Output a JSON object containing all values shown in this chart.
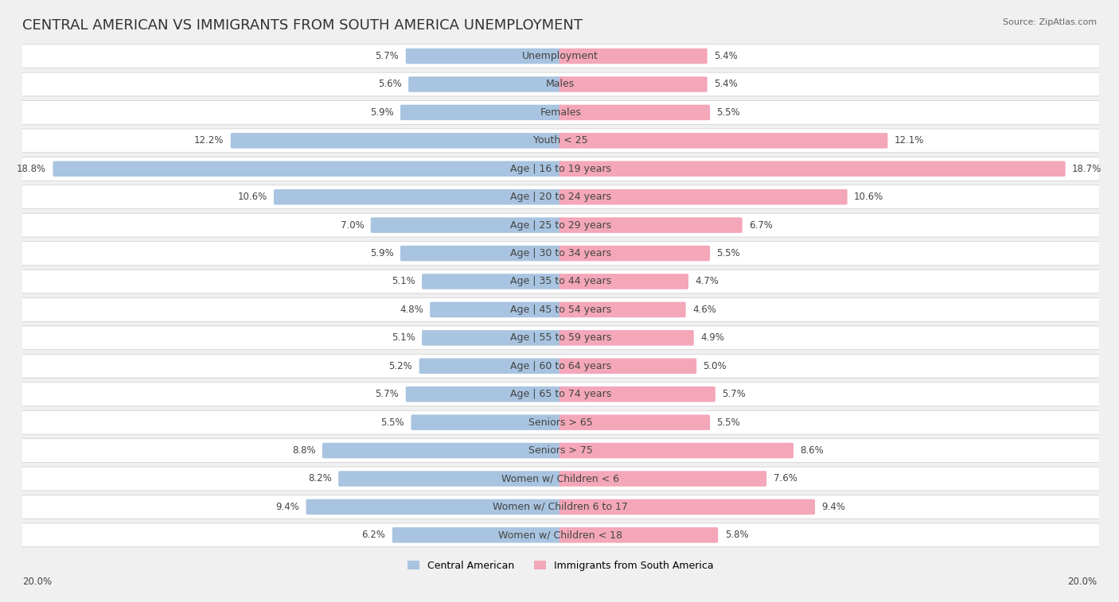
{
  "title": "CENTRAL AMERICAN VS IMMIGRANTS FROM SOUTH AMERICA UNEMPLOYMENT",
  "source": "Source: ZipAtlas.com",
  "categories": [
    "Unemployment",
    "Males",
    "Females",
    "Youth < 25",
    "Age | 16 to 19 years",
    "Age | 20 to 24 years",
    "Age | 25 to 29 years",
    "Age | 30 to 34 years",
    "Age | 35 to 44 years",
    "Age | 45 to 54 years",
    "Age | 55 to 59 years",
    "Age | 60 to 64 years",
    "Age | 65 to 74 years",
    "Seniors > 65",
    "Seniors > 75",
    "Women w/ Children < 6",
    "Women w/ Children 6 to 17",
    "Women w/ Children < 18"
  ],
  "central_american": [
    5.7,
    5.6,
    5.9,
    12.2,
    18.8,
    10.6,
    7.0,
    5.9,
    5.1,
    4.8,
    5.1,
    5.2,
    5.7,
    5.5,
    8.8,
    8.2,
    9.4,
    6.2
  ],
  "south_american": [
    5.4,
    5.4,
    5.5,
    12.1,
    18.7,
    10.6,
    6.7,
    5.5,
    4.7,
    4.6,
    4.9,
    5.0,
    5.7,
    5.5,
    8.6,
    7.6,
    9.4,
    5.8
  ],
  "central_color": "#a8c4e0",
  "south_color": "#f4a7b9",
  "background_color": "#f0f0f0",
  "row_bg_color": "#ffffff",
  "axis_max": 20.0,
  "legend_central": "Central American",
  "legend_south": "Immigrants from South America",
  "title_fontsize": 13,
  "label_fontsize": 9,
  "value_fontsize": 8.5
}
